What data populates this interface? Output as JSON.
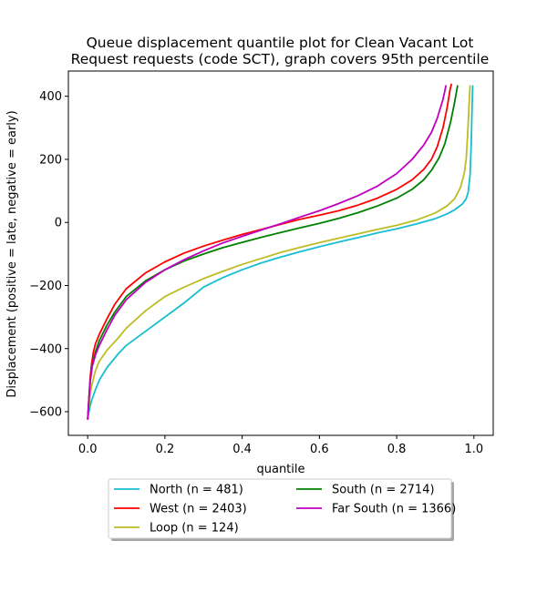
{
  "chart_data": {
    "type": "line",
    "title_line1": "Queue displacement quantile plot for Clean Vacant Lot",
    "title_line2": "Request  requests (code SCT), graph covers 95th percentile",
    "xlabel": "quantile",
    "ylabel": "Displacement (positive = late, negative = early)",
    "xlim": [
      -0.05,
      1.05
    ],
    "ylim": [
      -675,
      480
    ],
    "xticks": [
      0.0,
      0.2,
      0.4,
      0.6,
      0.8,
      1.0
    ],
    "xtick_labels": [
      "0.0",
      "0.2",
      "0.4",
      "0.6",
      "0.8",
      "1.0"
    ],
    "yticks": [
      400,
      200,
      0,
      -200,
      -400,
      -600
    ],
    "ytick_labels": [
      "400",
      "200",
      "0",
      "−200",
      "−400",
      "−600"
    ],
    "grid": false,
    "legend_placement": "below plot, center",
    "series": [
      {
        "name": "North (n = 481)",
        "color": "#17becf",
        "points": [
          [
            0.0,
            -620
          ],
          [
            0.005,
            -590
          ],
          [
            0.01,
            -565
          ],
          [
            0.02,
            -530
          ],
          [
            0.03,
            -500
          ],
          [
            0.05,
            -460
          ],
          [
            0.08,
            -415
          ],
          [
            0.1,
            -390
          ],
          [
            0.15,
            -345
          ],
          [
            0.2,
            -300
          ],
          [
            0.25,
            -255
          ],
          [
            0.3,
            -205
          ],
          [
            0.35,
            -175
          ],
          [
            0.4,
            -150
          ],
          [
            0.45,
            -128
          ],
          [
            0.5,
            -110
          ],
          [
            0.55,
            -93
          ],
          [
            0.6,
            -77
          ],
          [
            0.65,
            -62
          ],
          [
            0.7,
            -48
          ],
          [
            0.75,
            -33
          ],
          [
            0.8,
            -20
          ],
          [
            0.85,
            -5
          ],
          [
            0.9,
            12
          ],
          [
            0.93,
            27
          ],
          [
            0.95,
            40
          ],
          [
            0.97,
            58
          ],
          [
            0.98,
            75
          ],
          [
            0.985,
            95
          ],
          [
            0.99,
            150
          ],
          [
            0.993,
            250
          ],
          [
            0.995,
            350
          ],
          [
            0.997,
            435
          ]
        ]
      },
      {
        "name": "West (n = 2403)",
        "color": "#ff0000",
        "points": [
          [
            0.0,
            -625
          ],
          [
            0.003,
            -560
          ],
          [
            0.006,
            -500
          ],
          [
            0.01,
            -450
          ],
          [
            0.015,
            -410
          ],
          [
            0.02,
            -385
          ],
          [
            0.03,
            -355
          ],
          [
            0.05,
            -305
          ],
          [
            0.07,
            -260
          ],
          [
            0.1,
            -210
          ],
          [
            0.15,
            -160
          ],
          [
            0.2,
            -125
          ],
          [
            0.25,
            -97
          ],
          [
            0.3,
            -75
          ],
          [
            0.35,
            -56
          ],
          [
            0.4,
            -38
          ],
          [
            0.45,
            -22
          ],
          [
            0.5,
            -6
          ],
          [
            0.55,
            10
          ],
          [
            0.6,
            23
          ],
          [
            0.65,
            37
          ],
          [
            0.7,
            55
          ],
          [
            0.75,
            77
          ],
          [
            0.8,
            105
          ],
          [
            0.84,
            135
          ],
          [
            0.87,
            168
          ],
          [
            0.89,
            200
          ],
          [
            0.905,
            240
          ],
          [
            0.92,
            300
          ],
          [
            0.93,
            360
          ],
          [
            0.938,
            420
          ],
          [
            0.942,
            440
          ]
        ]
      },
      {
        "name": "Loop (n = 124)",
        "color": "#bcbd22",
        "points": [
          [
            0.0,
            -620
          ],
          [
            0.005,
            -560
          ],
          [
            0.01,
            -520
          ],
          [
            0.02,
            -470
          ],
          [
            0.03,
            -440
          ],
          [
            0.05,
            -405
          ],
          [
            0.08,
            -365
          ],
          [
            0.1,
            -335
          ],
          [
            0.15,
            -280
          ],
          [
            0.2,
            -235
          ],
          [
            0.25,
            -205
          ],
          [
            0.3,
            -178
          ],
          [
            0.35,
            -155
          ],
          [
            0.4,
            -133
          ],
          [
            0.45,
            -114
          ],
          [
            0.5,
            -95
          ],
          [
            0.55,
            -79
          ],
          [
            0.6,
            -64
          ],
          [
            0.65,
            -50
          ],
          [
            0.7,
            -36
          ],
          [
            0.75,
            -22
          ],
          [
            0.8,
            -9
          ],
          [
            0.85,
            7
          ],
          [
            0.9,
            30
          ],
          [
            0.93,
            52
          ],
          [
            0.95,
            75
          ],
          [
            0.965,
            110
          ],
          [
            0.975,
            155
          ],
          [
            0.98,
            200
          ],
          [
            0.984,
            280
          ],
          [
            0.987,
            360
          ],
          [
            0.99,
            435
          ]
        ]
      },
      {
        "name": "South (n = 2714)",
        "color": "#008000",
        "points": [
          [
            0.0,
            -625
          ],
          [
            0.003,
            -560
          ],
          [
            0.007,
            -500
          ],
          [
            0.012,
            -450
          ],
          [
            0.02,
            -410
          ],
          [
            0.03,
            -375
          ],
          [
            0.05,
            -325
          ],
          [
            0.07,
            -285
          ],
          [
            0.1,
            -235
          ],
          [
            0.15,
            -185
          ],
          [
            0.2,
            -150
          ],
          [
            0.25,
            -122
          ],
          [
            0.3,
            -100
          ],
          [
            0.35,
            -80
          ],
          [
            0.4,
            -63
          ],
          [
            0.45,
            -47
          ],
          [
            0.5,
            -32
          ],
          [
            0.55,
            -17
          ],
          [
            0.6,
            -3
          ],
          [
            0.65,
            13
          ],
          [
            0.7,
            31
          ],
          [
            0.75,
            52
          ],
          [
            0.8,
            77
          ],
          [
            0.84,
            105
          ],
          [
            0.87,
            135
          ],
          [
            0.89,
            165
          ],
          [
            0.91,
            205
          ],
          [
            0.925,
            250
          ],
          [
            0.94,
            320
          ],
          [
            0.95,
            380
          ],
          [
            0.958,
            435
          ]
        ]
      },
      {
        "name": "Far South (n = 1366)",
        "color": "#bf00bf",
        "points": [
          [
            0.0,
            -625
          ],
          [
            0.003,
            -560
          ],
          [
            0.007,
            -500
          ],
          [
            0.012,
            -455
          ],
          [
            0.02,
            -420
          ],
          [
            0.03,
            -390
          ],
          [
            0.05,
            -340
          ],
          [
            0.07,
            -295
          ],
          [
            0.1,
            -245
          ],
          [
            0.15,
            -190
          ],
          [
            0.2,
            -150
          ],
          [
            0.25,
            -118
          ],
          [
            0.3,
            -90
          ],
          [
            0.35,
            -65
          ],
          [
            0.4,
            -44
          ],
          [
            0.45,
            -24
          ],
          [
            0.5,
            -4
          ],
          [
            0.55,
            17
          ],
          [
            0.6,
            37
          ],
          [
            0.65,
            60
          ],
          [
            0.7,
            85
          ],
          [
            0.75,
            115
          ],
          [
            0.8,
            155
          ],
          [
            0.84,
            200
          ],
          [
            0.87,
            245
          ],
          [
            0.89,
            285
          ],
          [
            0.905,
            330
          ],
          [
            0.92,
            390
          ],
          [
            0.928,
            435
          ]
        ]
      }
    ]
  }
}
